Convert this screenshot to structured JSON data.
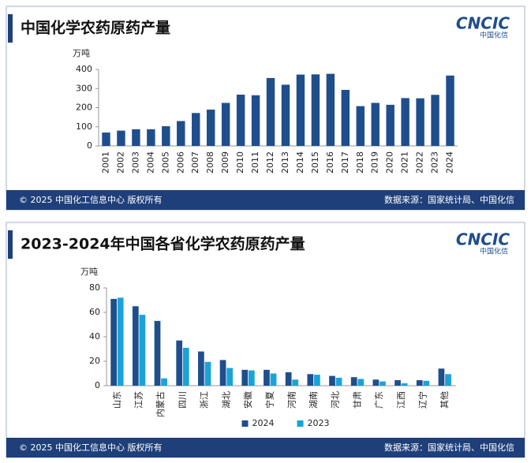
{
  "logo": {
    "mark": "CNCIC",
    "sub": "中国化信"
  },
  "footer": {
    "copyright": "© 2025 中国化工信息中心  版权所有",
    "source": "数据来源：国家统计局、中国化信"
  },
  "chart_data": [
    {
      "type": "bar",
      "title": "中国化学农药原药产量",
      "y_label": "万吨",
      "categories": [
        "2001",
        "2002",
        "2003",
        "2004",
        "2005",
        "2006",
        "2007",
        "2008",
        "2009",
        "2010",
        "2011",
        "2012",
        "2013",
        "2014",
        "2015",
        "2016",
        "2017",
        "2018",
        "2019",
        "2020",
        "2021",
        "2022",
        "2023",
        "2024"
      ],
      "series": [
        {
          "name": null,
          "color": "#1f4e8c",
          "values": [
            70,
            80,
            87,
            87,
            103,
            130,
            172,
            190,
            225,
            268,
            265,
            355,
            320,
            373,
            374,
            377,
            293,
            208,
            225,
            215,
            250,
            249,
            267,
            368
          ]
        }
      ],
      "ylim": [
        0,
        400
      ],
      "yticks": [
        0,
        100,
        200,
        300,
        400
      ]
    },
    {
      "type": "bar",
      "title": "2023-2024年中国各省化学农药原药产量",
      "y_label": "万吨",
      "categories": [
        "山东",
        "江苏",
        "内蒙古",
        "四川",
        "浙江",
        "湖北",
        "安徽",
        "宁夏",
        "河南",
        "湖南",
        "河北",
        "甘肃",
        "广东",
        "江西",
        "辽宁",
        "其他"
      ],
      "series": [
        {
          "name": "2024",
          "color": "#1f4e8c",
          "values": [
            71,
            65,
            53,
            37,
            28,
            21,
            13,
            13,
            11,
            9.5,
            8,
            7,
            5,
            4.5,
            4.5,
            14
          ]
        },
        {
          "name": "2023",
          "color": "#1aa3d9",
          "values": [
            72,
            58,
            6,
            31,
            19.5,
            14.5,
            12.5,
            10,
            5,
            9,
            6.5,
            5.5,
            3.5,
            2,
            4,
            9.5
          ]
        }
      ],
      "ylim": [
        0,
        80
      ],
      "yticks": [
        0,
        20,
        40,
        60,
        80
      ]
    }
  ]
}
